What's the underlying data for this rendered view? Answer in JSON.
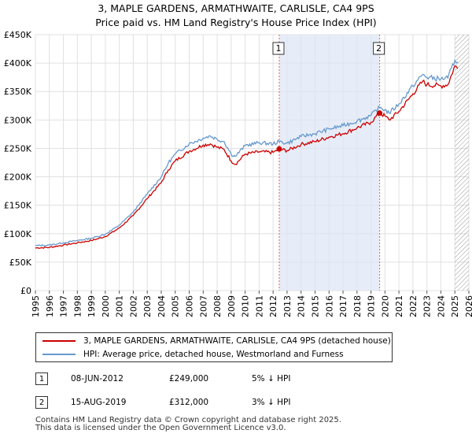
{
  "chart_data": {
    "type": "line",
    "title": "3, MAPLE GARDENS, ARMATHWAITE, CARLISLE, CA4 9PS",
    "subtitle": "Price paid vs. HM Land Registry's House Price Index (HPI)",
    "x_ticks": [
      "1995",
      "1996",
      "1997",
      "1998",
      "1999",
      "2000",
      "2001",
      "2002",
      "2003",
      "2004",
      "2005",
      "2006",
      "2007",
      "2008",
      "2009",
      "2010",
      "2011",
      "2012",
      "2013",
      "2014",
      "2015",
      "2016",
      "2017",
      "2018",
      "2019",
      "2020",
      "2021",
      "2022",
      "2023",
      "2024",
      "2025",
      "2026"
    ],
    "y_ticks": [
      "£0",
      "£50K",
      "£100K",
      "£150K",
      "£200K",
      "£250K",
      "£300K",
      "£350K",
      "£400K",
      "£450K"
    ],
    "xlim": [
      1995,
      2026
    ],
    "ylim": [
      0,
      450000
    ],
    "grid": true,
    "series": [
      {
        "name": "3, MAPLE GARDENS, ARMATHWAITE, CARLISLE, CA4 9PS (detached house)",
        "color": "#cc0000",
        "x": [
          1995.0,
          1996.0,
          1997.0,
          1998.0,
          1999.0,
          2000.0,
          2001.0,
          2002.0,
          2003.0,
          2004.0,
          2004.5,
          2005.0,
          2006.0,
          2007.0,
          2007.5,
          2008.0,
          2008.5,
          2009.0,
          2009.3,
          2010.0,
          2011.0,
          2012.0,
          2012.44,
          2013.0,
          2014.0,
          2015.0,
          2016.0,
          2017.0,
          2018.0,
          2019.0,
          2019.62,
          2020.0,
          2020.3,
          2021.0,
          2022.0,
          2022.7,
          2023.0,
          2024.0,
          2024.5,
          2025.0,
          2025.2
        ],
        "values": [
          75000,
          76000,
          80000,
          84000,
          88000,
          95000,
          110000,
          132000,
          162000,
          190000,
          212000,
          228000,
          245000,
          256000,
          258000,
          252000,
          248000,
          228000,
          222000,
          240000,
          244000,
          243000,
          249000,
          246000,
          257000,
          262000,
          270000,
          276000,
          286000,
          296000,
          312000,
          307000,
          300000,
          315000,
          346000,
          368000,
          362000,
          360000,
          362000,
          395000,
          390000
        ]
      },
      {
        "name": "HPI: Average price, detached house, Westmorland and Furness",
        "color": "#6699cc",
        "x": [
          1995.0,
          1996.0,
          1997.0,
          1998.0,
          1999.0,
          2000.0,
          2001.0,
          2002.0,
          2003.0,
          2004.0,
          2004.5,
          2005.0,
          2006.0,
          2007.0,
          2007.5,
          2008.0,
          2008.5,
          2009.0,
          2009.3,
          2010.0,
          2011.0,
          2012.0,
          2012.44,
          2013.0,
          2014.0,
          2015.0,
          2016.0,
          2017.0,
          2018.0,
          2019.0,
          2019.62,
          2020.0,
          2020.3,
          2021.0,
          2022.0,
          2022.7,
          2023.0,
          2024.0,
          2024.5,
          2025.0,
          2025.2
        ],
        "values": [
          79000,
          80000,
          84000,
          88000,
          92000,
          99000,
          115000,
          138000,
          170000,
          200000,
          224000,
          240000,
          258000,
          268000,
          272000,
          266000,
          262000,
          240000,
          236000,
          255000,
          260000,
          258000,
          262000,
          259000,
          271000,
          276000,
          284000,
          290000,
          298000,
          308000,
          322000,
          318000,
          312000,
          328000,
          360000,
          380000,
          375000,
          372000,
          374000,
          405000,
          402000
        ]
      }
    ],
    "sales": [
      {
        "label": "1",
        "x": 2012.44,
        "value": 249000
      },
      {
        "label": "2",
        "x": 2019.62,
        "value": 312000
      }
    ],
    "shaded_range": [
      2012.44,
      2019.62
    ],
    "hatched_from": 2025.0
  },
  "legend": {
    "property_label": "3, MAPLE GARDENS, ARMATHWAITE, CARLISLE, CA4 9PS (detached house)",
    "hpi_label": "HPI: Average price, detached house, Westmorland and Furness"
  },
  "sales_table": [
    {
      "num": "1",
      "date": "08-JUN-2012",
      "price": "£249,000",
      "hpi": "5% ↓ HPI"
    },
    {
      "num": "2",
      "date": "15-AUG-2019",
      "price": "£312,000",
      "hpi": "3% ↓ HPI"
    }
  ],
  "footer": {
    "line1": "Contains HM Land Registry data © Crown copyright and database right 2025.",
    "line2": "This data is licensed under the Open Government Licence v3.0."
  }
}
